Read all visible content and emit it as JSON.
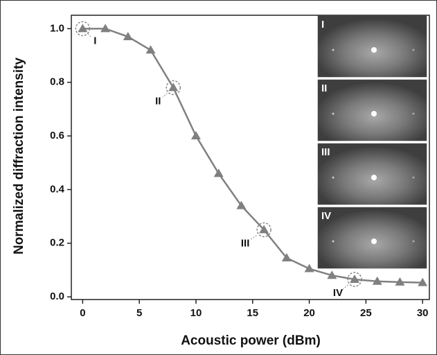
{
  "chart_data": {
    "type": "line",
    "xlabel": "Acoustic power (dBm)",
    "ylabel": "Normalized diffraction intensity",
    "x": [
      0,
      2,
      4,
      6,
      8,
      10,
      12,
      14,
      16,
      18,
      20,
      22,
      24,
      26,
      28,
      30
    ],
    "series": [
      {
        "color": "#808080",
        "values": [
          1.0,
          1.0,
          0.97,
          0.92,
          0.78,
          0.6,
          0.46,
          0.34,
          0.25,
          0.145,
          0.105,
          0.08,
          0.065,
          0.058,
          0.055,
          0.053
        ]
      }
    ],
    "xlim": [
      -1,
      30.6
    ],
    "xticks": [
      0,
      5,
      10,
      15,
      20,
      25,
      30
    ],
    "ylim": [
      -0.01,
      1.05
    ],
    "yticks": [
      {
        "value": 0,
        "label": "0.0"
      },
      0.2,
      0.4,
      0.6,
      0.8,
      {
        "value": 1,
        "label": "1.0"
      }
    ],
    "annotations": [
      {
        "text": "I",
        "x": 0
      },
      {
        "text": "II",
        "x": 8
      },
      {
        "text": "III",
        "x": 16
      },
      {
        "text": "IV",
        "x": 24
      }
    ]
  }
}
